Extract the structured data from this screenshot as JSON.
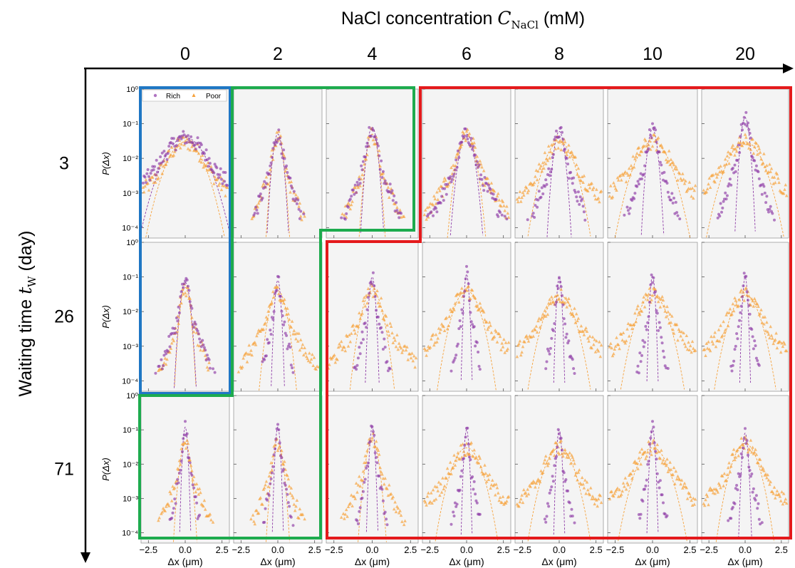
{
  "title": {
    "x_text": "NaCl concentration ",
    "x_symbol": "C",
    "x_subscript": "NaCl",
    "x_unit": " (mM)",
    "y_text": "Waiting time ",
    "y_symbol": "t",
    "y_subscript": "W",
    "y_unit": " (day)"
  },
  "axis_labels": {
    "ylabel": "P(Δx)",
    "xlabel": "Δx (μm)"
  },
  "legend": {
    "rich": "Rich",
    "poor": "Poor"
  },
  "colors": {
    "rich": "#8e3ba6",
    "poor": "#f6a23c",
    "blue": "#1f77c4",
    "green": "#1dab4e",
    "red": "#e41a1c",
    "panel_bg": "#f4f4f4"
  },
  "chart_data": {
    "type": "scatter",
    "yscale": "log",
    "concentrations_mM": [
      "0",
      "2",
      "4",
      "6",
      "8",
      "10",
      "20"
    ],
    "waiting_times_day": [
      "3",
      "26",
      "71"
    ],
    "xlim": [
      -3,
      3
    ],
    "ylim": [
      5e-05,
      1
    ],
    "xticks": [
      "−2.5",
      "0.0",
      "2.5"
    ],
    "yticks": [
      "10⁰",
      "10⁻¹",
      "10⁻²",
      "10⁻³",
      "10⁻⁴"
    ],
    "series": [
      {
        "name": "Rich",
        "marker": "circle",
        "color": "#8e3ba6"
      },
      {
        "name": "Poor",
        "marker": "triangle",
        "color": "#f6a23c"
      }
    ],
    "panels": [
      [
        {
          "rich_peak": 0.04,
          "rich_sigma": 0.85,
          "poor_peak": 0.03,
          "poor_sigma": 0.75
        },
        {
          "rich_peak": 0.05,
          "rich_sigma": 0.2,
          "poor_peak": 0.04,
          "poor_sigma": 0.22
        },
        {
          "rich_peak": 0.08,
          "rich_sigma": 0.2,
          "poor_peak": 0.05,
          "poor_sigma": 0.23
        },
        {
          "rich_peak": 0.05,
          "rich_sigma": 0.3,
          "poor_peak": 0.05,
          "poor_sigma": 0.35
        },
        {
          "rich_peak": 0.06,
          "rich_sigma": 0.22,
          "poor_peak": 0.03,
          "poor_sigma": 0.6
        },
        {
          "rich_peak": 0.07,
          "rich_sigma": 0.2,
          "poor_peak": 0.03,
          "poor_sigma": 0.7
        },
        {
          "rich_peak": 0.15,
          "rich_sigma": 0.18,
          "poor_peak": 0.03,
          "poor_sigma": 0.75
        }
      ],
      [
        {
          "rich_peak": 0.07,
          "rich_sigma": 0.2,
          "poor_peak": 0.05,
          "poor_sigma": 0.2
        },
        {
          "rich_peak": 0.08,
          "rich_sigma": 0.12,
          "poor_peak": 0.04,
          "poor_sigma": 0.35
        },
        {
          "rich_peak": 0.1,
          "rich_sigma": 0.12,
          "poor_peak": 0.04,
          "poor_sigma": 0.4
        },
        {
          "rich_peak": 0.12,
          "rich_sigma": 0.1,
          "poor_peak": 0.04,
          "poor_sigma": 0.55
        },
        {
          "rich_peak": 0.1,
          "rich_sigma": 0.1,
          "poor_peak": 0.03,
          "poor_sigma": 0.6
        },
        {
          "rich_peak": 0.11,
          "rich_sigma": 0.1,
          "poor_peak": 0.03,
          "poor_sigma": 0.6
        },
        {
          "rich_peak": 0.1,
          "rich_sigma": 0.1,
          "poor_peak": 0.03,
          "poor_sigma": 0.6
        }
      ],
      [
        {
          "rich_peak": 0.12,
          "rich_sigma": 0.1,
          "poor_peak": 0.04,
          "poor_sigma": 0.22
        },
        {
          "rich_peak": 0.12,
          "rich_sigma": 0.1,
          "poor_peak": 0.04,
          "poor_sigma": 0.22
        },
        {
          "rich_peak": 0.12,
          "rich_sigma": 0.1,
          "poor_peak": 0.05,
          "poor_sigma": 0.25
        },
        {
          "rich_peak": 0.1,
          "rich_sigma": 0.1,
          "poor_peak": 0.03,
          "poor_sigma": 0.6
        },
        {
          "rich_peak": 0.1,
          "rich_sigma": 0.1,
          "poor_peak": 0.03,
          "poor_sigma": 0.6
        },
        {
          "rich_peak": 0.11,
          "rich_sigma": 0.1,
          "poor_peak": 0.03,
          "poor_sigma": 0.65
        },
        {
          "rich_peak": 0.08,
          "rich_sigma": 0.12,
          "poor_peak": 0.04,
          "poor_sigma": 0.55
        }
      ]
    ]
  }
}
